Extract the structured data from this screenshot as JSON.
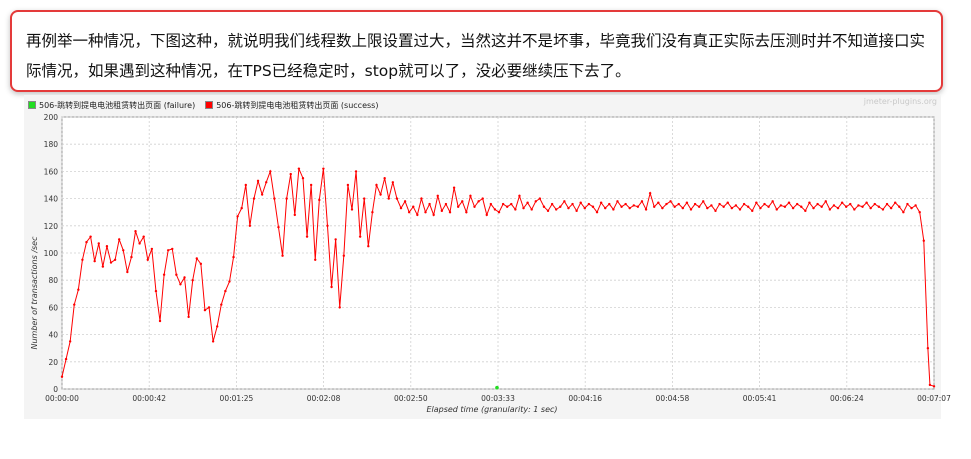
{
  "note": {
    "text": "再例举一种情况，下图这种，就说明我们线程数上限设置过大，当然这并不是坏事，毕竟我们没有真正实际去压测时并不知道接口实际情况，如果遇到这种情况，在TPS已经稳定时，stop就可以了，没必要继续压下去了。",
    "border_color": "#e43a3a"
  },
  "watermark": "jmeter-plugins.org",
  "chart_data": {
    "type": "line",
    "title": "",
    "xlabel": "Elapsed time (granularity: 1 sec)",
    "ylabel": "Number of transactions /sec",
    "ylim": [
      0,
      200
    ],
    "yticks": [
      "0",
      "20",
      "40",
      "60",
      "80",
      "100",
      "120",
      "140",
      "160",
      "180",
      "200"
    ],
    "xlim_seconds": [
      0,
      427
    ],
    "xticks": [
      "00:00:00",
      "00:00:42",
      "00:01:25",
      "00:02:08",
      "00:02:50",
      "00:03:33",
      "00:04:16",
      "00:04:58",
      "00:05:41",
      "00:06:24",
      "00:07:07"
    ],
    "grid": true,
    "legend_position": "top-left",
    "series": [
      {
        "name": "506-跳转到提电电池租赁转出页面 (failure)",
        "color": "#22dd22",
        "points": [
          [
            213,
            1
          ]
        ]
      },
      {
        "name": "506-跳转到提电电池租赁转出页面 (success)",
        "color": "#ff0000",
        "points": [
          [
            0,
            9
          ],
          [
            2,
            22
          ],
          [
            4,
            35
          ],
          [
            6,
            62
          ],
          [
            8,
            73
          ],
          [
            10,
            95
          ],
          [
            12,
            108
          ],
          [
            14,
            112
          ],
          [
            16,
            94
          ],
          [
            18,
            107
          ],
          [
            20,
            90
          ],
          [
            22,
            105
          ],
          [
            24,
            93
          ],
          [
            26,
            95
          ],
          [
            28,
            110
          ],
          [
            30,
            102
          ],
          [
            32,
            86
          ],
          [
            34,
            97
          ],
          [
            36,
            116
          ],
          [
            38,
            107
          ],
          [
            40,
            112
          ],
          [
            42,
            95
          ],
          [
            44,
            103
          ],
          [
            46,
            72
          ],
          [
            48,
            50
          ],
          [
            50,
            84
          ],
          [
            52,
            102
          ],
          [
            54,
            103
          ],
          [
            56,
            84
          ],
          [
            58,
            77
          ],
          [
            60,
            82
          ],
          [
            62,
            53
          ],
          [
            64,
            80
          ],
          [
            66,
            96
          ],
          [
            68,
            92
          ],
          [
            70,
            58
          ],
          [
            72,
            60
          ],
          [
            74,
            35
          ],
          [
            76,
            46
          ],
          [
            78,
            62
          ],
          [
            80,
            72
          ],
          [
            82,
            79
          ],
          [
            84,
            97
          ],
          [
            86,
            127
          ],
          [
            88,
            133
          ],
          [
            90,
            150
          ],
          [
            92,
            120
          ],
          [
            94,
            140
          ],
          [
            96,
            153
          ],
          [
            98,
            143
          ],
          [
            100,
            152
          ],
          [
            102,
            160
          ],
          [
            104,
            140
          ],
          [
            106,
            119
          ],
          [
            108,
            98
          ],
          [
            110,
            140
          ],
          [
            112,
            158
          ],
          [
            114,
            128
          ],
          [
            116,
            162
          ],
          [
            118,
            155
          ],
          [
            120,
            112
          ],
          [
            122,
            150
          ],
          [
            124,
            95
          ],
          [
            126,
            139
          ],
          [
            128,
            162
          ],
          [
            130,
            120
          ],
          [
            132,
            75
          ],
          [
            134,
            110
          ],
          [
            136,
            60
          ],
          [
            138,
            98
          ],
          [
            140,
            150
          ],
          [
            142,
            132
          ],
          [
            144,
            160
          ],
          [
            146,
            112
          ],
          [
            148,
            140
          ],
          [
            150,
            105
          ],
          [
            152,
            130
          ],
          [
            154,
            150
          ],
          [
            156,
            143
          ],
          [
            158,
            155
          ],
          [
            160,
            140
          ],
          [
            162,
            152
          ],
          [
            164,
            140
          ],
          [
            166,
            133
          ],
          [
            168,
            138
          ],
          [
            170,
            130
          ],
          [
            172,
            134
          ],
          [
            174,
            128
          ],
          [
            176,
            140
          ],
          [
            178,
            130
          ],
          [
            180,
            136
          ],
          [
            182,
            128
          ],
          [
            184,
            142
          ],
          [
            186,
            131
          ],
          [
            188,
            136
          ],
          [
            190,
            130
          ],
          [
            192,
            148
          ],
          [
            194,
            134
          ],
          [
            196,
            138
          ],
          [
            198,
            130
          ],
          [
            200,
            142
          ],
          [
            202,
            134
          ],
          [
            204,
            138
          ],
          [
            206,
            140
          ],
          [
            208,
            128
          ],
          [
            210,
            136
          ],
          [
            212,
            132
          ],
          [
            214,
            130
          ],
          [
            216,
            136
          ],
          [
            218,
            134
          ],
          [
            220,
            136
          ],
          [
            222,
            132
          ],
          [
            224,
            142
          ],
          [
            226,
            133
          ],
          [
            228,
            137
          ],
          [
            230,
            132
          ],
          [
            232,
            138
          ],
          [
            234,
            140
          ],
          [
            236,
            134
          ],
          [
            238,
            131
          ],
          [
            240,
            136
          ],
          [
            242,
            132
          ],
          [
            244,
            134
          ],
          [
            246,
            138
          ],
          [
            248,
            133
          ],
          [
            250,
            136
          ],
          [
            252,
            131
          ],
          [
            254,
            137
          ],
          [
            256,
            133
          ],
          [
            258,
            136
          ],
          [
            260,
            134
          ],
          [
            262,
            130
          ],
          [
            264,
            137
          ],
          [
            266,
            133
          ],
          [
            268,
            136
          ],
          [
            270,
            132
          ],
          [
            272,
            138
          ],
          [
            274,
            134
          ],
          [
            276,
            136
          ],
          [
            278,
            133
          ],
          [
            280,
            135
          ],
          [
            282,
            134
          ],
          [
            284,
            138
          ],
          [
            286,
            132
          ],
          [
            288,
            144
          ],
          [
            290,
            134
          ],
          [
            292,
            137
          ],
          [
            294,
            133
          ],
          [
            296,
            136
          ],
          [
            298,
            138
          ],
          [
            300,
            134
          ],
          [
            302,
            136
          ],
          [
            304,
            133
          ],
          [
            306,
            137
          ],
          [
            308,
            132
          ],
          [
            310,
            136
          ],
          [
            312,
            134
          ],
          [
            314,
            138
          ],
          [
            316,
            133
          ],
          [
            318,
            135
          ],
          [
            320,
            131
          ],
          [
            322,
            136
          ],
          [
            324,
            134
          ],
          [
            326,
            137
          ],
          [
            328,
            133
          ],
          [
            330,
            135
          ],
          [
            332,
            132
          ],
          [
            334,
            136
          ],
          [
            336,
            134
          ],
          [
            338,
            131
          ],
          [
            340,
            137
          ],
          [
            342,
            133
          ],
          [
            344,
            136
          ],
          [
            346,
            134
          ],
          [
            348,
            138
          ],
          [
            350,
            132
          ],
          [
            352,
            135
          ],
          [
            354,
            134
          ],
          [
            356,
            137
          ],
          [
            358,
            133
          ],
          [
            360,
            136
          ],
          [
            362,
            134
          ],
          [
            364,
            131
          ],
          [
            366,
            137
          ],
          [
            368,
            133
          ],
          [
            370,
            136
          ],
          [
            372,
            134
          ],
          [
            374,
            138
          ],
          [
            376,
            132
          ],
          [
            378,
            135
          ],
          [
            380,
            133
          ],
          [
            382,
            137
          ],
          [
            384,
            134
          ],
          [
            386,
            136
          ],
          [
            388,
            132
          ],
          [
            390,
            135
          ],
          [
            392,
            134
          ],
          [
            394,
            137
          ],
          [
            396,
            133
          ],
          [
            398,
            136
          ],
          [
            400,
            134
          ],
          [
            402,
            132
          ],
          [
            404,
            136
          ],
          [
            406,
            133
          ],
          [
            408,
            137
          ],
          [
            410,
            134
          ],
          [
            412,
            130
          ],
          [
            414,
            136
          ],
          [
            416,
            133
          ],
          [
            418,
            135
          ],
          [
            420,
            130
          ],
          [
            422,
            109
          ],
          [
            424,
            30
          ],
          [
            425,
            3
          ],
          [
            427,
            2
          ]
        ]
      }
    ]
  }
}
